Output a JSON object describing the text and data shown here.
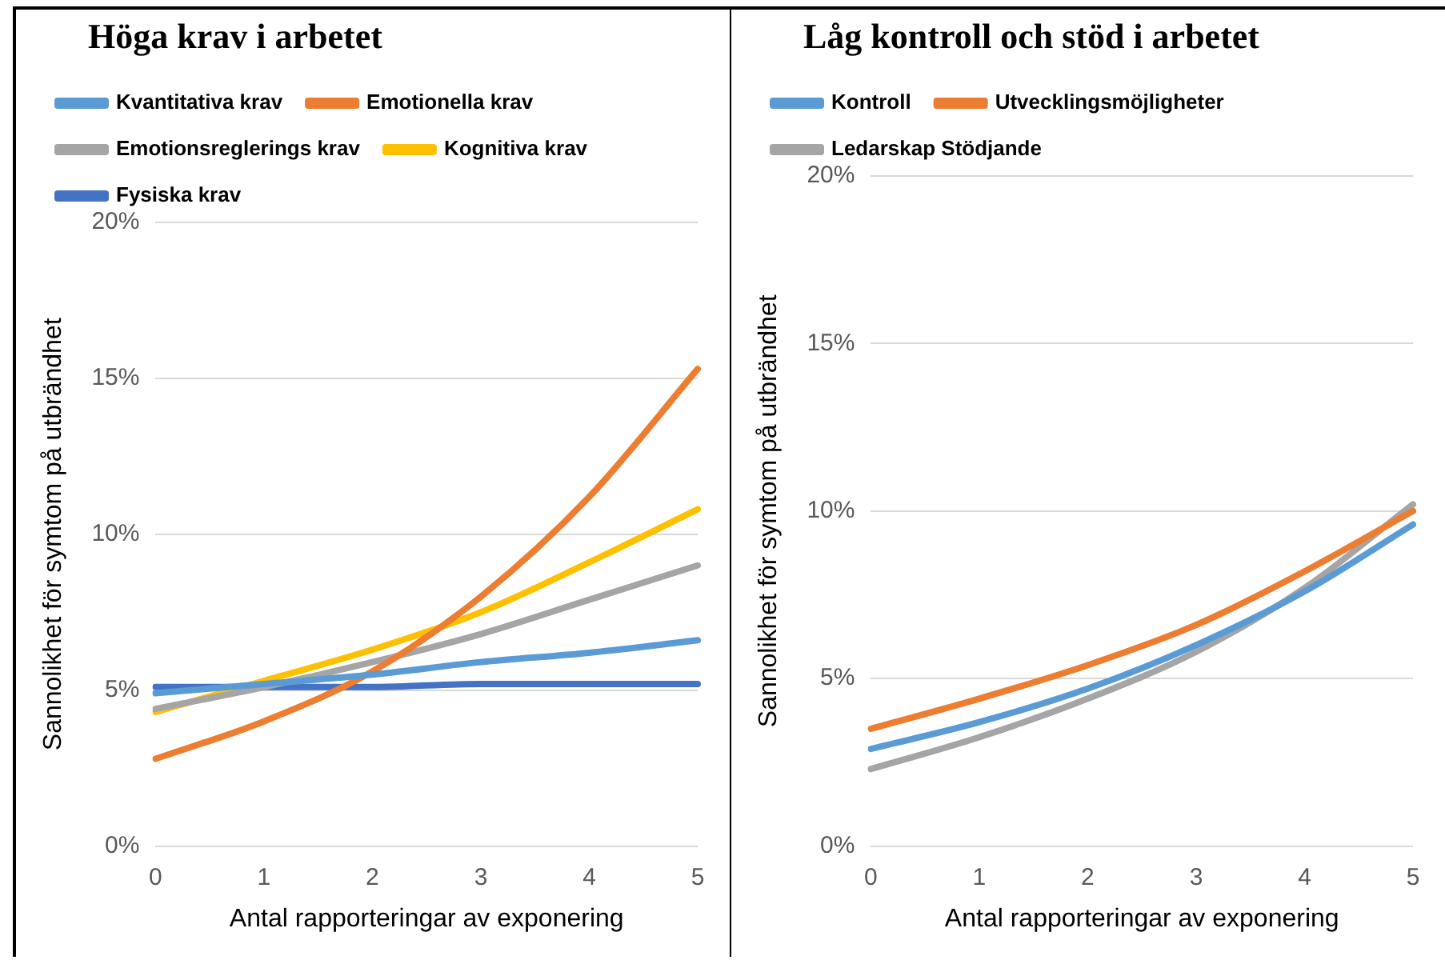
{
  "chart_data": [
    {
      "type": "line",
      "title": "Höga krav i arbetet",
      "xlabel": "Antal rapporteringar av exponering",
      "ylabel": "Sannolikhet för symtom på utbrändhet",
      "categories": [
        "0",
        "1",
        "2",
        "3",
        "4",
        "5"
      ],
      "ylim": [
        0,
        20
      ],
      "yticks": [
        {
          "value": 0,
          "label": "0%"
        },
        {
          "value": 5,
          "label": "5%"
        },
        {
          "value": 10,
          "label": "10%"
        },
        {
          "value": 15,
          "label": "15%"
        },
        {
          "value": 20,
          "label": "20%"
        }
      ],
      "grid": "y",
      "legend": "top",
      "marker": "none",
      "line_style": "solid",
      "series": [
        {
          "name": "Kvantitativa krav",
          "color": "#5b9bd5",
          "values": [
            4.9,
            5.2,
            5.5,
            5.9,
            6.2,
            6.6
          ]
        },
        {
          "name": "Emotionella krav",
          "color": "#ed7d31",
          "values": [
            2.8,
            4.0,
            5.6,
            8.0,
            11.2,
            15.3
          ]
        },
        {
          "name": "Emotionsreglerings krav",
          "color": "#a5a5a5",
          "values": [
            4.4,
            5.1,
            5.9,
            6.8,
            7.9,
            9.0
          ]
        },
        {
          "name": "Kognitiva krav",
          "color": "#ffc000",
          "values": [
            4.3,
            5.3,
            6.3,
            7.5,
            9.1,
            10.8
          ]
        },
        {
          "name": "Fysiska krav",
          "color": "#4472c4",
          "values": [
            5.1,
            5.1,
            5.1,
            5.2,
            5.2,
            5.2
          ]
        }
      ]
    },
    {
      "type": "line",
      "title": "Låg kontroll och stöd i arbetet",
      "xlabel": "Antal rapporteringar av exponering",
      "ylabel": "Sannolikhet för symtom på utbrändhet",
      "categories": [
        "0",
        "1",
        "2",
        "3",
        "4",
        "5"
      ],
      "ylim": [
        0,
        20
      ],
      "yticks": [
        {
          "value": 0,
          "label": "0%"
        },
        {
          "value": 5,
          "label": "5%"
        },
        {
          "value": 10,
          "label": "10%"
        },
        {
          "value": 15,
          "label": "15%"
        },
        {
          "value": 20,
          "label": "20%"
        }
      ],
      "grid": "y",
      "legend": "top",
      "marker": "none",
      "line_style": "solid",
      "series": [
        {
          "name": "Kontroll",
          "color": "#5b9bd5",
          "values": [
            2.9,
            3.7,
            4.7,
            6.0,
            7.6,
            9.6
          ]
        },
        {
          "name": "Utvecklingsmöjligheter",
          "color": "#ed7d31",
          "values": [
            3.5,
            4.4,
            5.4,
            6.6,
            8.2,
            10.0
          ]
        },
        {
          "name": "Ledarskap Stödjande",
          "color": "#a5a5a5",
          "values": [
            2.3,
            3.25,
            4.4,
            5.8,
            7.7,
            10.2
          ]
        }
      ]
    }
  ]
}
